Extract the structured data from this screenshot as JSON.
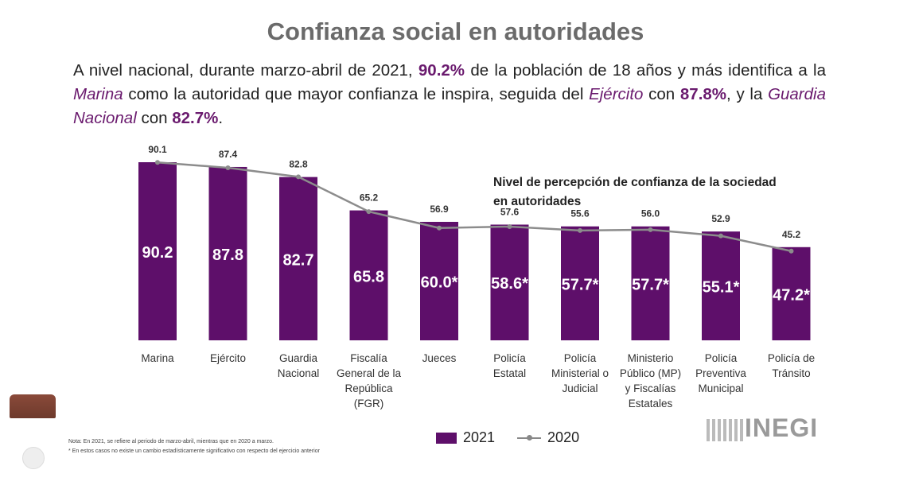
{
  "title": "Confianza social en autoridades",
  "intro": {
    "p1": "A nivel nacional, durante marzo-abril de 2021, ",
    "v1": "90.2%",
    "p2": " de la población de 18 años y más identifica a la ",
    "marina": "Marina",
    "p3": " como la autoridad que mayor confianza le inspira, seguida del ",
    "ejercito": "Ejército",
    "p4": " con ",
    "v2": "87.8%",
    "p5": ", y  la ",
    "guardia": "Guardia Nacional",
    "p6": " con ",
    "v3": "82.7%",
    "p7": "."
  },
  "notes": {
    "line1": "Nota: En 2021, se refiere al periodo de marzo-abril, mientras que en 2020 a marzo.",
    "line2": "* En estos casos no existe un cambio estadísticamente significativo con respecto del ejercicio anterior"
  },
  "brand": "INEGI",
  "colors": {
    "bar": "#5e0f6a",
    "line": "#8c8c8c"
  },
  "chart_data": {
    "type": "bar",
    "title": "Nivel de percepción de confianza de la sociedad en autoridades",
    "title_lines": [
      "Nivel de percepción de confianza de la sociedad",
      "en autoridades"
    ],
    "categories": [
      [
        "Marina"
      ],
      [
        "Ejército"
      ],
      [
        "Guardia",
        "Nacional"
      ],
      [
        "Fiscalía",
        "General de la",
        "República",
        "(FGR)"
      ],
      [
        "Jueces"
      ],
      [
        "Policía",
        "Estatal"
      ],
      [
        "Policía",
        "Ministerial o",
        "Judicial"
      ],
      [
        "Ministerio",
        "Público (MP)",
        "y Fiscalías",
        "Estatales"
      ],
      [
        "Policía",
        "Preventiva",
        "Municipal"
      ],
      [
        "Policía de",
        "Tránsito"
      ]
    ],
    "series": [
      {
        "name": "2021",
        "type": "bar",
        "values": [
          90.2,
          87.8,
          82.7,
          65.8,
          60.0,
          58.6,
          57.7,
          57.7,
          55.1,
          47.2
        ],
        "labels": [
          "90.2",
          "87.8",
          "82.7",
          "65.8",
          "60.0*",
          "58.6*",
          "57.7*",
          "57.7*",
          "55.1*",
          "47.2*"
        ]
      },
      {
        "name": "2020",
        "type": "line",
        "values": [
          90.1,
          87.4,
          82.8,
          65.2,
          56.9,
          57.6,
          55.6,
          56.0,
          52.9,
          45.2
        ],
        "labels": [
          "90.1",
          "87.4",
          "82.8",
          "65.2",
          "56.9",
          "57.6",
          "55.6",
          "56.0",
          "52.9",
          "45.2"
        ]
      }
    ],
    "ylim": [
      0,
      100
    ],
    "grid": false,
    "legend": "bottom"
  }
}
